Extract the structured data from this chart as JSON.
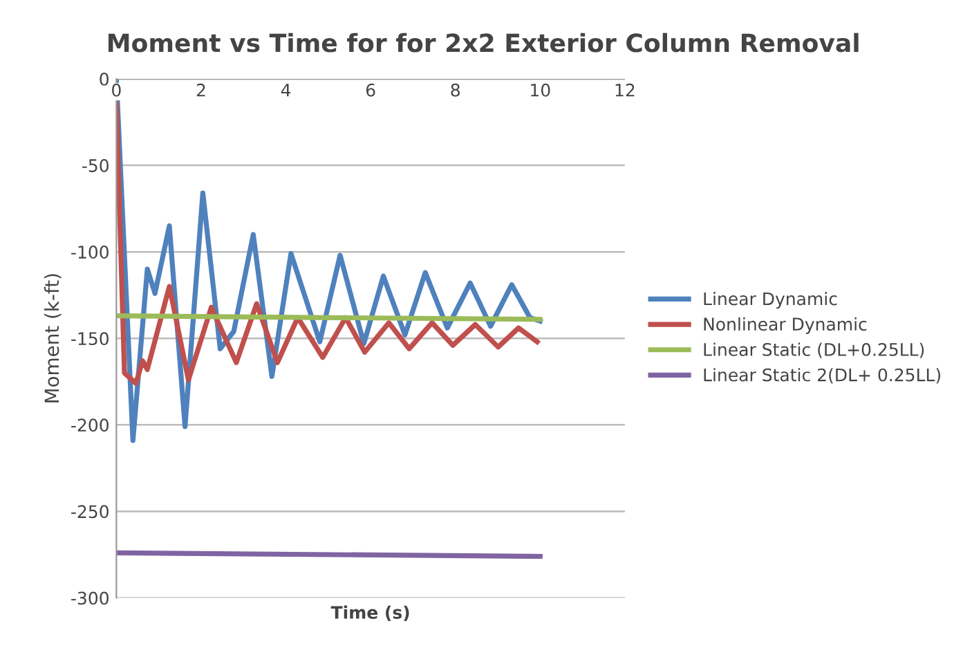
{
  "chart_data": {
    "type": "line",
    "title": "Moment vs Time for for 2x2 Exterior Column Removal",
    "xlabel": "Time (s)",
    "ylabel": "Moment (k-ft)",
    "xlim": [
      0,
      12
    ],
    "xticks": [
      0,
      2,
      4,
      6,
      8,
      10,
      12
    ],
    "ylim": [
      -300,
      0
    ],
    "yticks": [
      0,
      -50,
      -100,
      -150,
      -200,
      -250,
      -300
    ],
    "grid": "y",
    "legend": "right",
    "marker": "none",
    "line_style": "solid",
    "series": [
      {
        "name": "Linear Dynamic",
        "color": "#4f81bd",
        "x": [
          0,
          0.39,
          0.73,
          0.91,
          1.25,
          1.62,
          2.04,
          2.45,
          2.77,
          3.23,
          3.67,
          4.12,
          4.8,
          5.28,
          5.84,
          6.3,
          6.81,
          7.29,
          7.81,
          8.35,
          8.83,
          9.33,
          9.76,
          10
        ],
        "values": [
          0,
          -209,
          -110,
          -124,
          -85,
          -201,
          -66,
          -156,
          -146,
          -90,
          -172,
          -101,
          -152,
          -102,
          -153,
          -114,
          -148,
          -112,
          -144,
          -118,
          -143,
          -119,
          -138,
          -140
        ]
      },
      {
        "name": "Nonlinear Dynamic",
        "color": "#c0504d",
        "x": [
          0,
          0.19,
          0.46,
          0.62,
          0.73,
          1.25,
          1.7,
          2.24,
          2.83,
          3.31,
          3.8,
          4.28,
          4.87,
          5.41,
          5.86,
          6.43,
          6.91,
          7.45,
          7.94,
          8.47,
          9.01,
          9.49,
          9.93
        ],
        "values": [
          -15,
          -170,
          -176,
          -163,
          -168,
          -120,
          -174,
          -132,
          -164,
          -130,
          -164,
          -138,
          -161,
          -138,
          -158,
          -141,
          -156,
          -141,
          -154,
          -142,
          -155,
          -144,
          -152
        ]
      },
      {
        "name": "Linear Static (DL+0.25LL)",
        "color": "#9bbb59",
        "x": [
          0,
          10
        ],
        "values": [
          -137,
          -139
        ]
      },
      {
        "name": "Linear Static 2(DL+ 0.25LL)",
        "color": "#8064a2",
        "x": [
          0,
          10
        ],
        "values": [
          -274,
          -276
        ]
      }
    ]
  }
}
